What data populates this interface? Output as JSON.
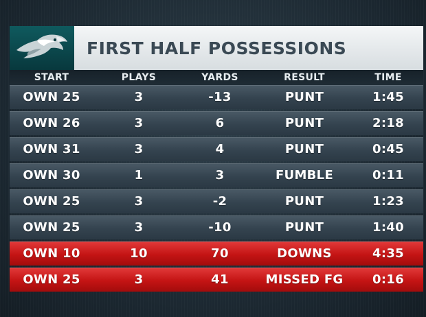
{
  "header": {
    "title": "FIRST HALF POSSESSIONS"
  },
  "columns": [
    "START",
    "PLAYS",
    "YARDS",
    "RESULT",
    "TIME"
  ],
  "rows": [
    [
      "OWN 25",
      "3",
      "-13",
      "PUNT",
      "1:45"
    ],
    [
      "OWN 26",
      "3",
      "6",
      "PUNT",
      "2:18"
    ],
    [
      "OWN 31",
      "3",
      "4",
      "PUNT",
      "0:45"
    ],
    [
      "OWN 30",
      "1",
      "3",
      "FUMBLE",
      "0:11"
    ],
    [
      "OWN 25",
      "3",
      "-2",
      "PUNT",
      "1:23"
    ],
    [
      "OWN 25",
      "3",
      "-10",
      "PUNT",
      "1:40"
    ],
    [
      "OWN 10",
      "10",
      "70",
      "DOWNS",
      "4:35"
    ],
    [
      "OWN 25",
      "3",
      "41",
      "MISSED FG",
      "0:16"
    ]
  ],
  "highlighted_rows": [
    6,
    7
  ],
  "colors": {
    "highlight": "#c41414",
    "row": "#3a4955",
    "logo_bg": "#0b4a4f"
  },
  "logo_icon": "eagle-head-icon"
}
